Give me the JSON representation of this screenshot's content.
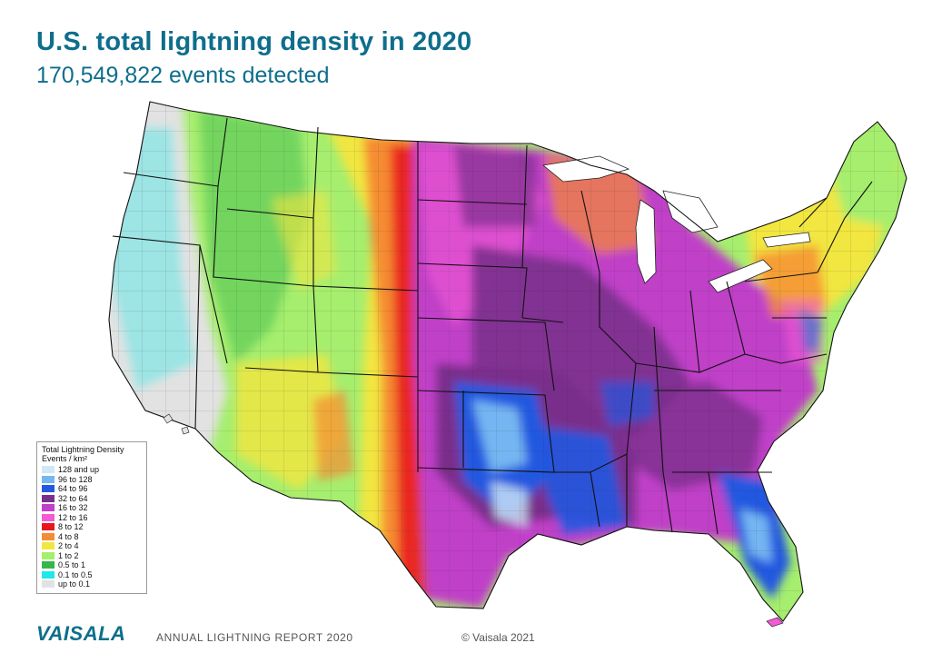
{
  "header": {
    "title": "U.S. total lightning density in 2020",
    "subtitle": "170,549,822 events detected"
  },
  "map": {
    "region": "Contiguous United States",
    "metric": "Total lightning density",
    "year": "2020"
  },
  "legend": {
    "title": "Total Lightning Density",
    "unit": "Events / km²",
    "items": [
      {
        "label": "128 and up",
        "color": "#cfe8f7"
      },
      {
        "label": "96 to 128",
        "color": "#74b6f2"
      },
      {
        "label": "64 to 96",
        "color": "#2458e0"
      },
      {
        "label": "32 to 64",
        "color": "#7a2f8c"
      },
      {
        "label": "16 to 32",
        "color": "#c040c8"
      },
      {
        "label": "12 to 16",
        "color": "#f25ad6"
      },
      {
        "label": "8 to 12",
        "color": "#e8141e"
      },
      {
        "label": "4 to 8",
        "color": "#f58c32"
      },
      {
        "label": "2 to 4",
        "color": "#f2e640"
      },
      {
        "label": "1 to 2",
        "color": "#a6ee6e"
      },
      {
        "label": "0.5 to 1",
        "color": "#35b64a"
      },
      {
        "label": "0.1 to 0.5",
        "color": "#1ee8e8"
      },
      {
        "label": "up to 0.1",
        "color": "#e2e2e2"
      }
    ]
  },
  "footer": {
    "logo": "VAISALA",
    "report": "ANNUAL LIGHTNING REPORT 2020",
    "copyright": "© Vaisala 2021"
  },
  "colors": {
    "brand": "#0e6e8c",
    "text_muted": "#555555"
  }
}
